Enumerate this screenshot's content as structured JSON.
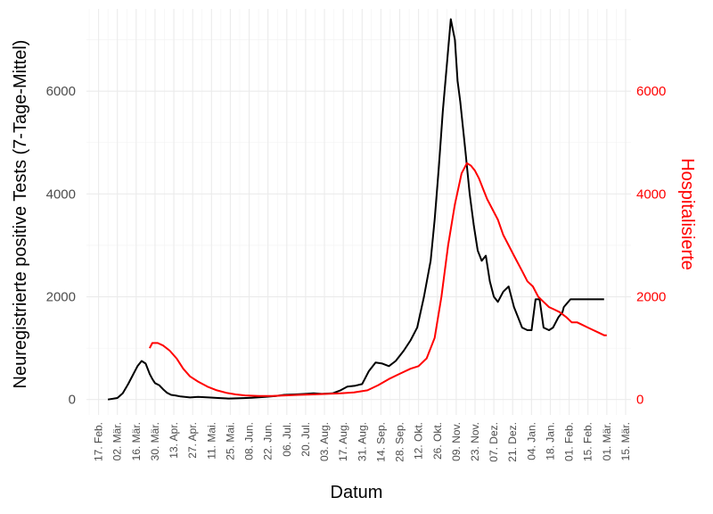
{
  "chart_data": {
    "type": "line",
    "xlabel": "Datum",
    "ylabel": "Neuregistrierte positive Tests (7-Tage-Mittel)",
    "ylabel_right": "Hospitalisierte",
    "ylim": [
      -300,
      7600
    ],
    "y_ticks": [
      0,
      2000,
      4000,
      6000
    ],
    "y_tick_labels": [
      "0",
      "2000",
      "4000",
      "6000"
    ],
    "y_right_ticks": [
      0,
      2000,
      4000,
      6000
    ],
    "y_right_tick_labels": [
      "0",
      "2000",
      "4000",
      "6000"
    ],
    "x_range": [
      "2020-02-08",
      "2021-03-19"
    ],
    "x_ticks": [
      "2020-02-17",
      "2020-03-02",
      "2020-03-16",
      "2020-03-30",
      "2020-04-13",
      "2020-04-27",
      "2020-05-11",
      "2020-05-25",
      "2020-06-08",
      "2020-06-22",
      "2020-07-06",
      "2020-07-20",
      "2020-08-03",
      "2020-08-17",
      "2020-08-31",
      "2020-09-14",
      "2020-09-28",
      "2020-10-12",
      "2020-10-26",
      "2020-11-09",
      "2020-11-23",
      "2020-12-07",
      "2020-12-21",
      "2021-01-04",
      "2021-01-18",
      "2021-02-01",
      "2021-02-15",
      "2021-03-01",
      "2021-03-15"
    ],
    "x_tick_labels": [
      "17. Feb.",
      "02. Mär.",
      "16. Mär.",
      "30. Mär.",
      "13. Apr.",
      "27. Apr.",
      "11. Mai.",
      "25. Mai.",
      "08. Jun.",
      "22. Jun.",
      "06. Jul.",
      "20. Jul.",
      "03. Aug.",
      "17. Aug.",
      "31. Aug.",
      "14. Sep.",
      "28. Sep.",
      "12. Okt.",
      "26. Okt.",
      "09. Nov.",
      "23. Nov.",
      "07. Dez.",
      "21. Dez.",
      "04. Jan.",
      "18. Jan.",
      "01. Feb.",
      "15. Feb.",
      "01. Mär.",
      "15. Mär."
    ],
    "grid": true,
    "legend": "none",
    "series": [
      {
        "color": "#000000",
        "axis": "left",
        "x": [
          "2020-02-24",
          "2020-03-02",
          "2020-03-06",
          "2020-03-10",
          "2020-03-14",
          "2020-03-17",
          "2020-03-20",
          "2020-03-23",
          "2020-03-26",
          "2020-03-28",
          "2020-03-30",
          "2020-04-02",
          "2020-04-05",
          "2020-04-08",
          "2020-04-11",
          "2020-04-14",
          "2020-04-18",
          "2020-04-25",
          "2020-05-01",
          "2020-05-09",
          "2020-05-16",
          "2020-05-24",
          "2020-06-01",
          "2020-06-10",
          "2020-06-20",
          "2020-06-28",
          "2020-07-04",
          "2020-07-12",
          "2020-07-20",
          "2020-07-26",
          "2020-08-01",
          "2020-08-09",
          "2020-08-15",
          "2020-08-20",
          "2020-08-26",
          "2020-08-31",
          "2020-09-05",
          "2020-09-10",
          "2020-09-15",
          "2020-09-20",
          "2020-09-25",
          "2020-10-01",
          "2020-10-06",
          "2020-10-11",
          "2020-10-16",
          "2020-10-21",
          "2020-10-24",
          "2020-10-27",
          "2020-10-30",
          "2020-11-02",
          "2020-11-05",
          "2020-11-08",
          "2020-11-10",
          "2020-11-12",
          "2020-11-14",
          "2020-11-16",
          "2020-11-19",
          "2020-11-22",
          "2020-11-25",
          "2020-11-28",
          "2020-12-01",
          "2020-12-04",
          "2020-12-07",
          "2020-12-10",
          "2020-12-14",
          "2020-12-18",
          "2020-12-22",
          "2020-12-25",
          "2020-12-28",
          "2021-01-01",
          "2021-01-04",
          "2021-01-07",
          "2021-01-10",
          "2021-01-13",
          "2021-01-17",
          "2021-01-20",
          "2021-01-24",
          "2021-01-27",
          "2021-01-28",
          "2021-02-02",
          "2021-02-05",
          "2021-02-08",
          "2021-02-11",
          "2021-02-15",
          "2021-02-18",
          "2021-02-21",
          "2021-02-24",
          "2021-02-27"
        ],
        "y": [
          0,
          30,
          120,
          300,
          500,
          650,
          750,
          700,
          500,
          400,
          320,
          280,
          200,
          130,
          90,
          80,
          60,
          40,
          50,
          40,
          30,
          20,
          25,
          35,
          50,
          70,
          90,
          100,
          110,
          120,
          110,
          120,
          180,
          250,
          270,
          300,
          550,
          720,
          700,
          650,
          750,
          950,
          1150,
          1400,
          2000,
          2700,
          3500,
          4500,
          5600,
          6500,
          7400,
          7000,
          6200,
          5800,
          5300,
          4800,
          4000,
          3400,
          2900,
          2700,
          2800,
          2300,
          2000,
          1900,
          2100,
          2200,
          1800,
          1600,
          1400,
          1350,
          1350,
          1950,
          1950,
          1400,
          1350,
          1400,
          1600,
          1700,
          1800,
          1950,
          1950,
          1950,
          1950,
          1950,
          1950,
          1950,
          1950,
          1950
        ]
      },
      {
        "color": "#ff0000",
        "axis": "right",
        "x": [
          "2020-03-26",
          "2020-03-28",
          "2020-04-01",
          "2020-04-05",
          "2020-04-10",
          "2020-04-15",
          "2020-04-20",
          "2020-04-25",
          "2020-05-01",
          "2020-05-08",
          "2020-05-15",
          "2020-05-22",
          "2020-05-29",
          "2020-06-05",
          "2020-06-15",
          "2020-06-25",
          "2020-07-05",
          "2020-07-15",
          "2020-07-25",
          "2020-08-05",
          "2020-08-15",
          "2020-08-25",
          "2020-09-04",
          "2020-09-12",
          "2020-09-20",
          "2020-09-28",
          "2020-10-06",
          "2020-10-12",
          "2020-10-18",
          "2020-10-24",
          "2020-10-29",
          "2020-11-03",
          "2020-11-08",
          "2020-11-13",
          "2020-11-17",
          "2020-11-20",
          "2020-11-23",
          "2020-11-26",
          "2020-11-29",
          "2020-12-02",
          "2020-12-06",
          "2020-12-10",
          "2020-12-14",
          "2020-12-18",
          "2020-12-22",
          "2020-12-28",
          "2021-01-01",
          "2021-01-05",
          "2021-01-09",
          "2021-01-13",
          "2021-01-17",
          "2021-01-21",
          "2021-01-25",
          "2021-01-30",
          "2021-02-03",
          "2021-02-07",
          "2021-02-11",
          "2021-02-15",
          "2021-02-19",
          "2021-02-23",
          "2021-02-27",
          "2021-03-01"
        ],
        "y": [
          1000,
          1100,
          1100,
          1050,
          950,
          800,
          600,
          450,
          350,
          250,
          180,
          130,
          100,
          80,
          70,
          70,
          80,
          90,
          100,
          110,
          120,
          140,
          180,
          280,
          400,
          500,
          600,
          650,
          800,
          1200,
          2000,
          3000,
          3800,
          4400,
          4600,
          4550,
          4450,
          4300,
          4100,
          3900,
          3700,
          3500,
          3200,
          3000,
          2800,
          2500,
          2300,
          2200,
          2000,
          1900,
          1800,
          1750,
          1700,
          1600,
          1500,
          1500,
          1450,
          1400,
          1350,
          1300,
          1250,
          1250
        ]
      }
    ]
  }
}
